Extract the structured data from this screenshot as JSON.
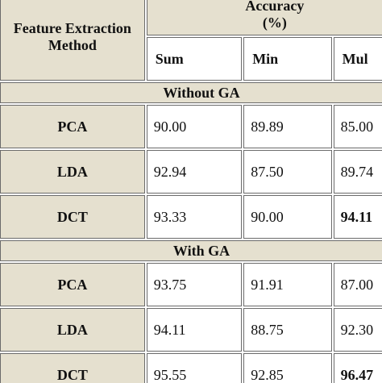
{
  "header": {
    "method": "Feature Extraction Method",
    "accuracy": "Accuracy (%)",
    "columns": [
      "Sum",
      "Min",
      "Mul"
    ]
  },
  "sections": [
    {
      "title": "Without GA",
      "rows": [
        {
          "method": "PCA",
          "values": [
            "90.00",
            "89.89",
            "85.00"
          ]
        },
        {
          "method": "LDA",
          "values": [
            "92.94",
            "87.50",
            "89.74"
          ]
        },
        {
          "method": "DCT",
          "values": [
            "93.33",
            "90.00",
            "94.11"
          ],
          "bold": [
            2
          ]
        }
      ]
    },
    {
      "title": "With GA",
      "rows": [
        {
          "method": "PCA",
          "values": [
            "93.75",
            "91.91",
            "87.00"
          ]
        },
        {
          "method": "LDA",
          "values": [
            "94.11",
            "88.75",
            "92.30"
          ]
        },
        {
          "method": "DCT",
          "values": [
            "95.55",
            "92.85",
            "96.47"
          ],
          "bold": [
            2
          ]
        }
      ]
    }
  ]
}
